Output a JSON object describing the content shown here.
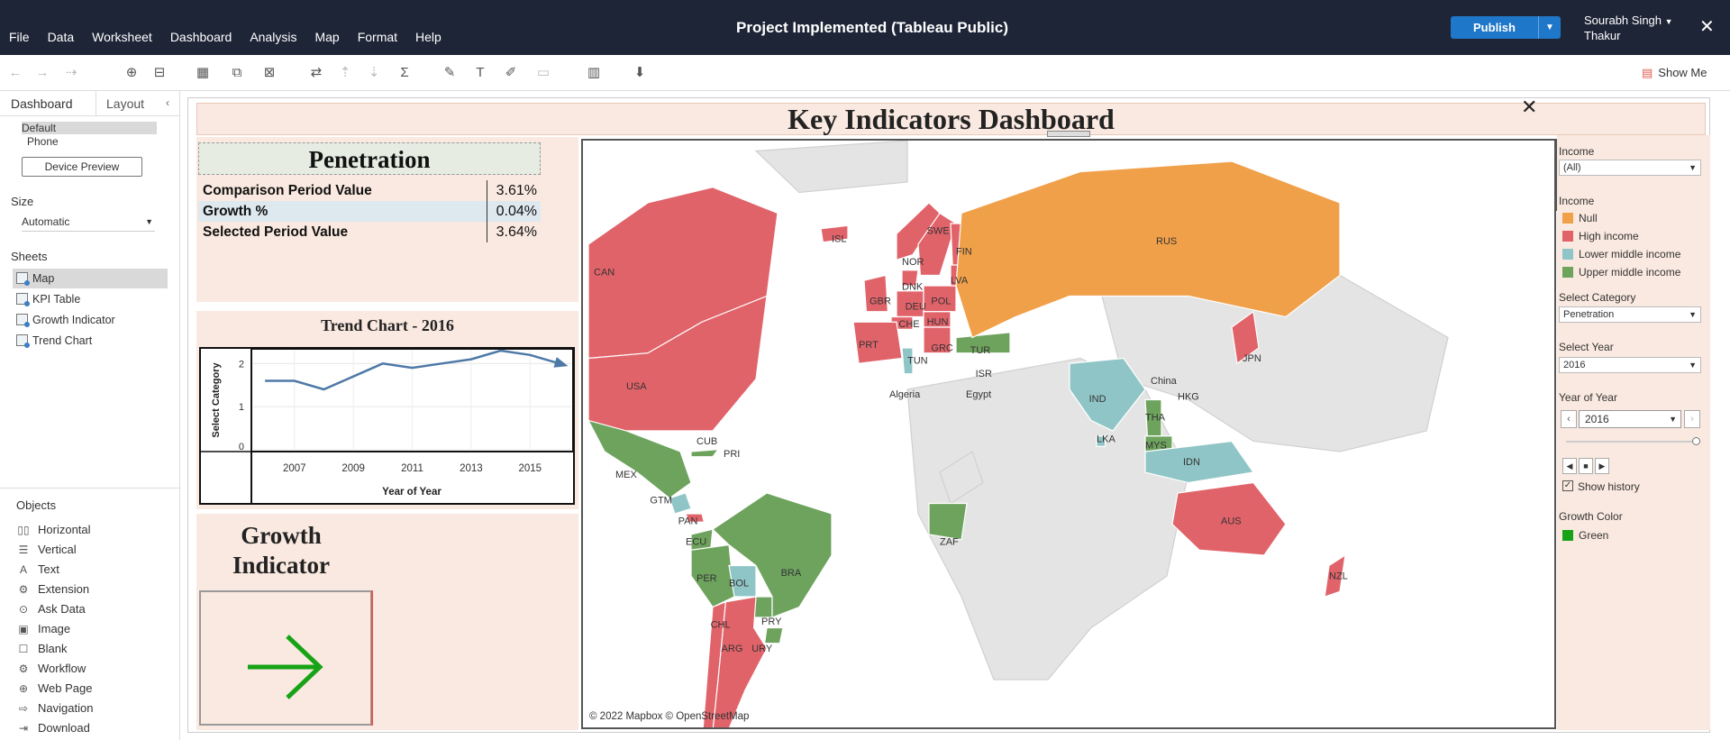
{
  "menu": [
    "File",
    "Data",
    "Worksheet",
    "Dashboard",
    "Analysis",
    "Map",
    "Format",
    "Help"
  ],
  "app_title": "Project Implemented (Tableau Public)",
  "publish_label": "Publish",
  "user_line1": "Sourabh Singh",
  "user_line2": "Thakur",
  "show_me": "Show Me",
  "sidebar": {
    "tab_dashboard": "Dashboard",
    "tab_layout": "Layout",
    "device_default": "Default",
    "device_phone": "Phone",
    "device_preview": "Device Preview",
    "size_header": "Size",
    "size_value": "Automatic",
    "sheets_header": "Sheets",
    "sheets": [
      "Map",
      "KPI Table",
      "Growth Indicator",
      "Trend Chart"
    ],
    "objects_header": "Objects",
    "objects": [
      "Horizontal",
      "Vertical",
      "Text",
      "Extension",
      "Ask Data",
      "Image",
      "Blank",
      "Workflow",
      "Web Page",
      "Navigation",
      "Download"
    ]
  },
  "dashboard": {
    "title": "Key Indicators Dashboard",
    "kpi": {
      "title": "Penetration",
      "rows": [
        {
          "label": "Comparison Period Value",
          "value": "3.61%"
        },
        {
          "label": "Growth %",
          "value": "0.04%"
        },
        {
          "label": "Selected Period Value",
          "value": "3.64%"
        }
      ]
    },
    "trend": {
      "title": "Trend Chart - 2016",
      "ylabel": "Select Category",
      "xlabel": "Year of Year",
      "yticks": [
        "0",
        "1",
        "2"
      ],
      "xticks": [
        "2007",
        "2009",
        "2011",
        "2013",
        "2015"
      ]
    },
    "growth_title_line1": "Growth",
    "growth_title_line2": "Indicator",
    "map_credit": "© 2022 Mapbox © OpenStreetMap",
    "map_background_labels": [
      "Algeria",
      "Egypt",
      "China"
    ],
    "countries": [
      "CAN",
      "USA",
      "MEX",
      "CUB",
      "PRI",
      "GTM",
      "PAN",
      "ECU",
      "PER",
      "BOL",
      "CHL",
      "PRY",
      "ARG",
      "URY",
      "BRA",
      "ISL",
      "NOR",
      "SWE",
      "FIN",
      "DNK",
      "GBR",
      "DEU",
      "POL",
      "LVA",
      "CHE",
      "HUN",
      "PRT",
      "GRC",
      "TUR",
      "TUN",
      "ISR",
      "RUS",
      "IND",
      "LKA",
      "THA",
      "MYS",
      "IDN",
      "HKG",
      "JPN",
      "ZAF",
      "AUS",
      "NZL"
    ]
  },
  "filters": {
    "income_header": "Income",
    "income_value": "(All)",
    "income_legend_header": "Income",
    "legend": [
      {
        "label": "Null",
        "color": "#f1a04a"
      },
      {
        "label": "High income",
        "color": "#e1636a"
      },
      {
        "label": "Lower middle income",
        "color": "#8fc5c6"
      },
      {
        "label": "Upper middle income",
        "color": "#6ea35e"
      }
    ],
    "category_header": "Select Category",
    "category_value": "Penetration",
    "year_header": "Select Year",
    "year_value": "2016",
    "play_header": "Year of Year",
    "play_value": "2016",
    "show_history": "Show history",
    "growth_color_header": "Growth Color",
    "growth_color_label": "Green",
    "growth_color": "#16a316"
  },
  "chart_data": {
    "type": "line",
    "title": "Trend Chart - 2016",
    "xlabel": "Year of Year",
    "ylabel": "Select Category",
    "x": [
      2006,
      2007,
      2008,
      2009,
      2010,
      2011,
      2012,
      2013,
      2014,
      2015,
      2016
    ],
    "values": [
      1.6,
      1.6,
      1.4,
      1.7,
      2.0,
      1.9,
      2.0,
      2.1,
      2.3,
      2.2,
      2.0
    ],
    "ylim": [
      0,
      2.3
    ],
    "xlim": [
      2005.6,
      2016.4
    ]
  }
}
